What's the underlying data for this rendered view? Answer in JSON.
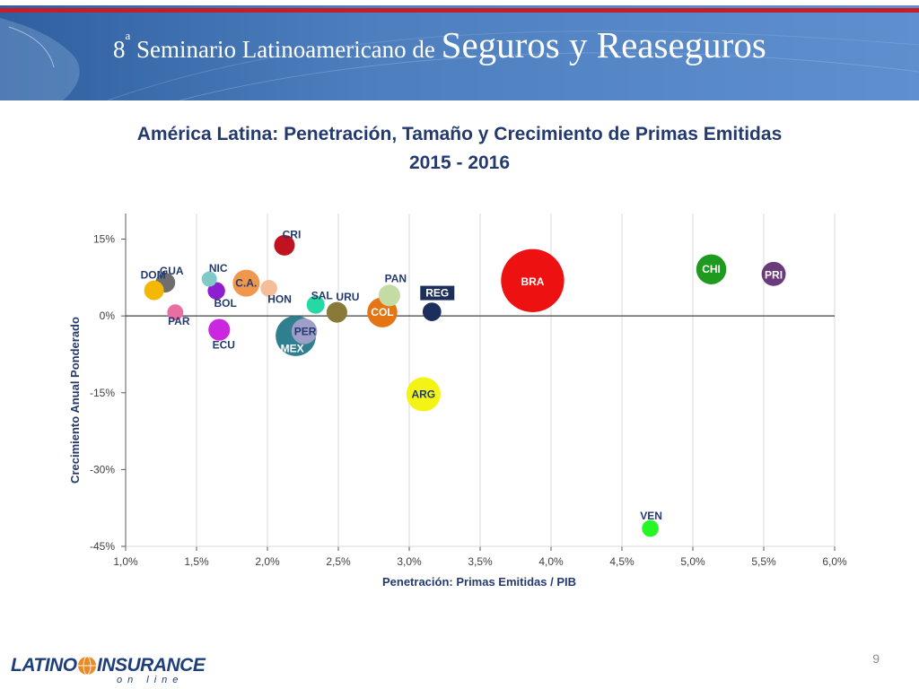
{
  "header": {
    "sup": "a",
    "title_prefix": "8",
    "title_small": " Seminario Latinoamericano de ",
    "title_large": "Seguros y Reaseguros"
  },
  "slide": {
    "title_line1": "América Latina: Penetración, Tamaño y Crecimiento de Primas Emitidas",
    "title_line2": "2015 - 2016"
  },
  "chart_data": {
    "type": "scatter",
    "title": "",
    "xlabel": "Penetración: Primas Emitidas / PIB",
    "ylabel": "Crecimiento Anual Ponderado",
    "xlim": [
      1.0,
      6.0
    ],
    "ylim": [
      -45,
      20
    ],
    "x_ticks": [
      1.0,
      1.5,
      2.0,
      2.5,
      3.0,
      3.5,
      4.0,
      4.5,
      5.0,
      5.5,
      6.0
    ],
    "x_tick_labels": [
      "1,0%",
      "1,5%",
      "2,0%",
      "2,5%",
      "3,0%",
      "3,5%",
      "4,0%",
      "4,5%",
      "5,0%",
      "5,5%",
      "6,0%"
    ],
    "y_ticks": [
      15,
      0,
      -15,
      -30,
      -45
    ],
    "y_tick_labels": [
      "15%",
      "0%",
      "-15%",
      "-30%",
      "-45%"
    ],
    "grid": "vertical",
    "points": [
      {
        "label": "GUA",
        "x": 1.28,
        "y": 6.5,
        "size": 0.6,
        "color": "#6e6e6e"
      },
      {
        "label": "DOM",
        "x": 1.2,
        "y": 5.0,
        "size": 0.6,
        "color": "#f5b800"
      },
      {
        "label": "PAR",
        "x": 1.35,
        "y": 0.7,
        "size": 0.3,
        "color": "#e86fa2"
      },
      {
        "label": "NIC",
        "x": 1.59,
        "y": 7.2,
        "size": 0.25,
        "color": "#7fc9c9"
      },
      {
        "label": "BOL",
        "x": 1.64,
        "y": 4.9,
        "size": 0.4,
        "color": "#8e1ecf"
      },
      {
        "label": "C.A.",
        "x": 1.85,
        "y": 6.4,
        "size": 1.5,
        "color": "#f0974e"
      },
      {
        "label": "ECU",
        "x": 1.66,
        "y": -2.7,
        "size": 0.8,
        "color": "#cc27e0"
      },
      {
        "label": "HON",
        "x": 2.01,
        "y": 5.4,
        "size": 0.35,
        "color": "#f4be9a"
      },
      {
        "label": "CRI",
        "x": 2.12,
        "y": 13.8,
        "size": 0.7,
        "color": "#c1121f"
      },
      {
        "label": "SAL",
        "x": 2.34,
        "y": 2.2,
        "size": 0.45,
        "color": "#26d9a4"
      },
      {
        "label": "URU",
        "x": 2.49,
        "y": 0.7,
        "size": 0.7,
        "color": "#8a7a3a"
      },
      {
        "label": "MEX",
        "x": 2.2,
        "y": -3.9,
        "size": 4.2,
        "color": "#2f7f90"
      },
      {
        "label": "PER",
        "x": 2.26,
        "y": -3.0,
        "size": 1.3,
        "color": "#9e9ec8"
      },
      {
        "label": "PAN",
        "x": 2.86,
        "y": 4.0,
        "size": 0.8,
        "color": "#c5dba5"
      },
      {
        "label": "COL",
        "x": 2.81,
        "y": 0.7,
        "size": 2.0,
        "color": "#e47512"
      },
      {
        "label": "REG",
        "x": 3.16,
        "y": 0.8,
        "size": 0.5,
        "color": "#1c2f5c"
      },
      {
        "label": "ARG",
        "x": 3.1,
        "y": -15.3,
        "size": 2.8,
        "color": "#f3f316"
      },
      {
        "label": "BRA",
        "x": 3.87,
        "y": 6.9,
        "size": 12.0,
        "color": "#ee1111"
      },
      {
        "label": "CHI",
        "x": 5.13,
        "y": 9.1,
        "size": 2.0,
        "color": "#1e9a1e"
      },
      {
        "label": "PRI",
        "x": 5.57,
        "y": 8.2,
        "size": 1.1,
        "color": "#6a3a7a"
      },
      {
        "label": "VEN",
        "x": 4.7,
        "y": -41.5,
        "size": 0.35,
        "color": "#26f526"
      }
    ]
  },
  "footer": {
    "logo_left": "LATINO",
    "logo_right": "INSURANCE",
    "logo_sub": "on line",
    "page_number": "9"
  }
}
